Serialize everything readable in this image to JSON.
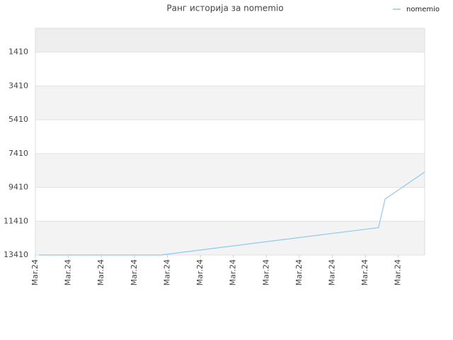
{
  "chart_data": {
    "type": "line",
    "title": "Ранг историја за nomemio",
    "x": [
      0.1,
      3.8,
      10.4,
      10.6,
      11.8
    ],
    "series": [
      {
        "name": "nomemio",
        "color": "#8ec8f0",
        "values": [
          13410,
          13410,
          11790,
          10100,
          8500
        ]
      }
    ],
    "xlim": [
      0,
      11.8
    ],
    "xticks": [
      {
        "value": 0,
        "label": "Mar.24"
      },
      {
        "value": 1,
        "label": "Mar.24"
      },
      {
        "value": 2,
        "label": "Mar.24"
      },
      {
        "value": 3,
        "label": "Mar.24"
      },
      {
        "value": 4,
        "label": "Mar.24"
      },
      {
        "value": 5,
        "label": "Mar.24"
      },
      {
        "value": 6,
        "label": "Mar.24"
      },
      {
        "value": 7,
        "label": "Mar.24"
      },
      {
        "value": 8,
        "label": "Mar.24"
      },
      {
        "value": 9,
        "label": "Mar.24"
      },
      {
        "value": 10,
        "label": "Mar.24"
      },
      {
        "value": 11,
        "label": "Mar.24"
      }
    ],
    "ylim": [
      13410,
      0
    ],
    "yticks": [
      1410,
      3410,
      5410,
      7410,
      9410,
      11410,
      13410
    ],
    "grid": true,
    "legend": "top-right"
  }
}
